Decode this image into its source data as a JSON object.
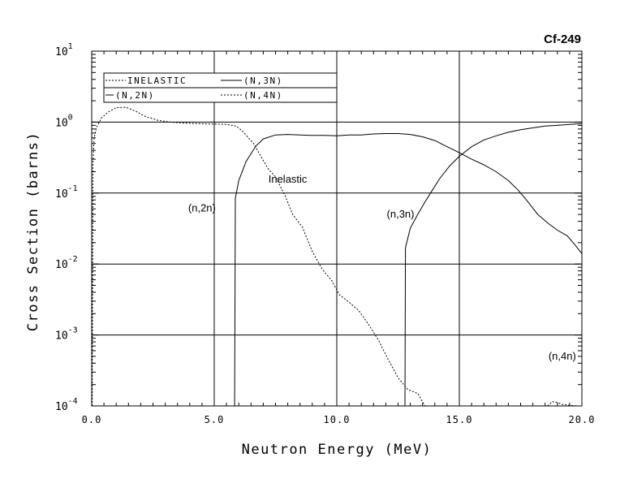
{
  "chart_data": {
    "type": "line",
    "title": "Cf-249",
    "xlabel": "Neutron Energy (MeV)",
    "ylabel": "Cross Section (barns)",
    "x_scale": "linear",
    "y_scale": "log",
    "xlim": [
      0,
      20
    ],
    "ylim": [
      0.0001,
      10
    ],
    "x_ticks": [
      "0.0",
      "5.0",
      "10.0",
      "15.0",
      "20.0"
    ],
    "y_ticks": [
      {
        "base": "10",
        "exp": "1"
      },
      {
        "base": "10",
        "exp": "0"
      },
      {
        "base": "10",
        "exp": "-1"
      },
      {
        "base": "10",
        "exp": "-2"
      },
      {
        "base": "10",
        "exp": "-3"
      },
      {
        "base": "10",
        "exp": "-4"
      }
    ],
    "grid": true,
    "legend_position": "top-left",
    "legend": [
      {
        "label": "INELASTIC",
        "style": "dotted"
      },
      {
        "label": "(N,2N)",
        "style": "solid"
      },
      {
        "label": "(N,3N)",
        "style": "solid"
      },
      {
        "label": "(N,4N)",
        "style": "dotted"
      }
    ],
    "annotations": [
      {
        "text": "Inelastic",
        "x": 8.0,
        "y": 0.14
      },
      {
        "text": "(n,2n)",
        "x": 4.5,
        "y": 0.055
      },
      {
        "text": "(n,3n)",
        "x": 12.6,
        "y": 0.045
      },
      {
        "text": "(n,4n)",
        "x": 19.2,
        "y": 0.00045
      }
    ],
    "series": [
      {
        "name": "INELASTIC",
        "style": "dotted",
        "points": [
          [
            0.02,
            0.0001
          ],
          [
            0.05,
            0.25
          ],
          [
            0.1,
            0.6
          ],
          [
            0.2,
            0.85
          ],
          [
            0.4,
            1.15
          ],
          [
            0.7,
            1.4
          ],
          [
            1.0,
            1.6
          ],
          [
            1.4,
            1.62
          ],
          [
            1.8,
            1.42
          ],
          [
            2.2,
            1.2
          ],
          [
            2.7,
            1.06
          ],
          [
            3.2,
            1.0
          ],
          [
            4.0,
            0.96
          ],
          [
            4.8,
            0.94
          ],
          [
            5.5,
            0.93
          ],
          [
            5.9,
            0.88
          ],
          [
            6.2,
            0.72
          ],
          [
            6.6,
            0.5
          ],
          [
            6.9,
            0.33
          ],
          [
            7.2,
            0.22
          ],
          [
            7.5,
            0.17
          ],
          [
            7.9,
            0.09
          ],
          [
            8.2,
            0.05
          ],
          [
            8.6,
            0.033
          ],
          [
            9.0,
            0.015
          ],
          [
            9.4,
            0.0085
          ],
          [
            9.8,
            0.0058
          ],
          [
            10.1,
            0.0037
          ],
          [
            10.5,
            0.0029
          ],
          [
            10.9,
            0.0022
          ],
          [
            11.3,
            0.0014
          ],
          [
            11.7,
            0.00085
          ],
          [
            12.1,
            0.00045
          ],
          [
            12.5,
            0.00025
          ],
          [
            12.9,
            0.00017
          ],
          [
            13.3,
            0.00015
          ],
          [
            13.6,
            0.0001
          ]
        ]
      },
      {
        "name": "(N,2N)",
        "style": "solid",
        "points": [
          [
            5.83,
            0.0001
          ],
          [
            5.86,
            0.085
          ],
          [
            6.0,
            0.15
          ],
          [
            6.3,
            0.28
          ],
          [
            6.7,
            0.46
          ],
          [
            7.0,
            0.58
          ],
          [
            7.5,
            0.66
          ],
          [
            8.0,
            0.67
          ],
          [
            8.5,
            0.66
          ],
          [
            9.0,
            0.65
          ],
          [
            9.5,
            0.65
          ],
          [
            10.0,
            0.64
          ],
          [
            10.5,
            0.66
          ],
          [
            11.0,
            0.66
          ],
          [
            11.5,
            0.68
          ],
          [
            12.0,
            0.69
          ],
          [
            12.5,
            0.69
          ],
          [
            13.0,
            0.67
          ],
          [
            13.5,
            0.62
          ],
          [
            14.0,
            0.55
          ],
          [
            14.5,
            0.45
          ],
          [
            15.0,
            0.37
          ],
          [
            15.5,
            0.3
          ],
          [
            16.0,
            0.25
          ],
          [
            16.5,
            0.2
          ],
          [
            17.0,
            0.15
          ],
          [
            17.4,
            0.11
          ],
          [
            17.8,
            0.075
          ],
          [
            18.2,
            0.05
          ],
          [
            18.6,
            0.038
          ],
          [
            19.0,
            0.03
          ],
          [
            19.4,
            0.025
          ],
          [
            19.7,
            0.019
          ],
          [
            20.0,
            0.014
          ]
        ]
      },
      {
        "name": "(N,3N)",
        "style": "solid",
        "points": [
          [
            12.78,
            0.0001
          ],
          [
            12.8,
            0.017
          ],
          [
            13.0,
            0.032
          ],
          [
            13.3,
            0.05
          ],
          [
            13.6,
            0.075
          ],
          [
            13.9,
            0.11
          ],
          [
            14.2,
            0.16
          ],
          [
            14.6,
            0.24
          ],
          [
            15.0,
            0.33
          ],
          [
            15.5,
            0.45
          ],
          [
            16.0,
            0.56
          ],
          [
            16.5,
            0.64
          ],
          [
            17.0,
            0.72
          ],
          [
            17.5,
            0.78
          ],
          [
            18.0,
            0.83
          ],
          [
            18.5,
            0.88
          ],
          [
            19.0,
            0.9
          ],
          [
            19.5,
            0.93
          ],
          [
            20.0,
            0.95
          ]
        ]
      },
      {
        "name": "(N,4N)",
        "style": "dotted",
        "points": [
          [
            18.6,
            0.0001
          ],
          [
            18.8,
            0.000115
          ],
          [
            19.0,
            0.000112
          ],
          [
            19.2,
            0.000105
          ],
          [
            19.5,
            0.000102
          ],
          [
            19.8,
            0.0001
          ],
          [
            20.0,
            0.0001
          ]
        ]
      }
    ]
  }
}
